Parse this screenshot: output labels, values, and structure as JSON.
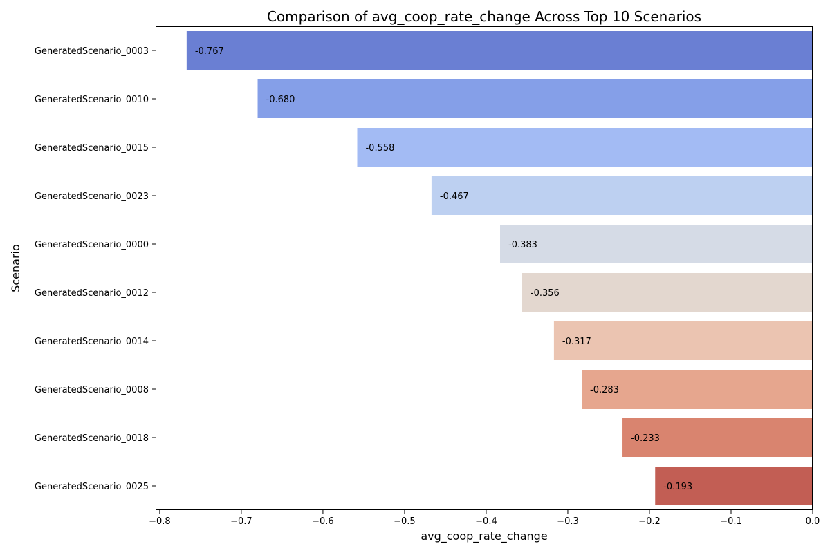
{
  "chart_data": {
    "type": "bar",
    "orientation": "horizontal",
    "title": "Comparison of avg_coop_rate_change Across Top 10 Scenarios",
    "xlabel": "avg_coop_rate_change",
    "ylabel": "Scenario",
    "xlim": [
      -0.805,
      0.0
    ],
    "xticks": [
      -0.8,
      -0.7,
      -0.6,
      -0.5,
      -0.4,
      -0.3,
      -0.2,
      -0.1,
      0.0
    ],
    "xtick_labels": [
      "−0.8",
      "−0.7",
      "−0.6",
      "−0.5",
      "−0.4",
      "−0.3",
      "−0.2",
      "−0.1",
      "0.0"
    ],
    "grid": false,
    "categories": [
      "GeneratedScenario_0003",
      "GeneratedScenario_0010",
      "GeneratedScenario_0015",
      "GeneratedScenario_0023",
      "GeneratedScenario_0000",
      "GeneratedScenario_0012",
      "GeneratedScenario_0014",
      "GeneratedScenario_0008",
      "GeneratedScenario_0018",
      "GeneratedScenario_0025"
    ],
    "values": [
      -0.767,
      -0.68,
      -0.558,
      -0.467,
      -0.383,
      -0.356,
      -0.317,
      -0.283,
      -0.233,
      -0.193
    ],
    "value_labels": [
      "-0.767",
      "-0.680",
      "-0.558",
      "-0.467",
      "-0.383",
      "-0.356",
      "-0.317",
      "-0.283",
      "-0.233",
      "-0.193"
    ],
    "colors": [
      "#6a7fd3",
      "#859fe8",
      "#a3bbf4",
      "#bdd0f1",
      "#d5dbe6",
      "#e3d7cf",
      "#ebc4b1",
      "#e6a68e",
      "#d9846f",
      "#c25e54"
    ]
  }
}
